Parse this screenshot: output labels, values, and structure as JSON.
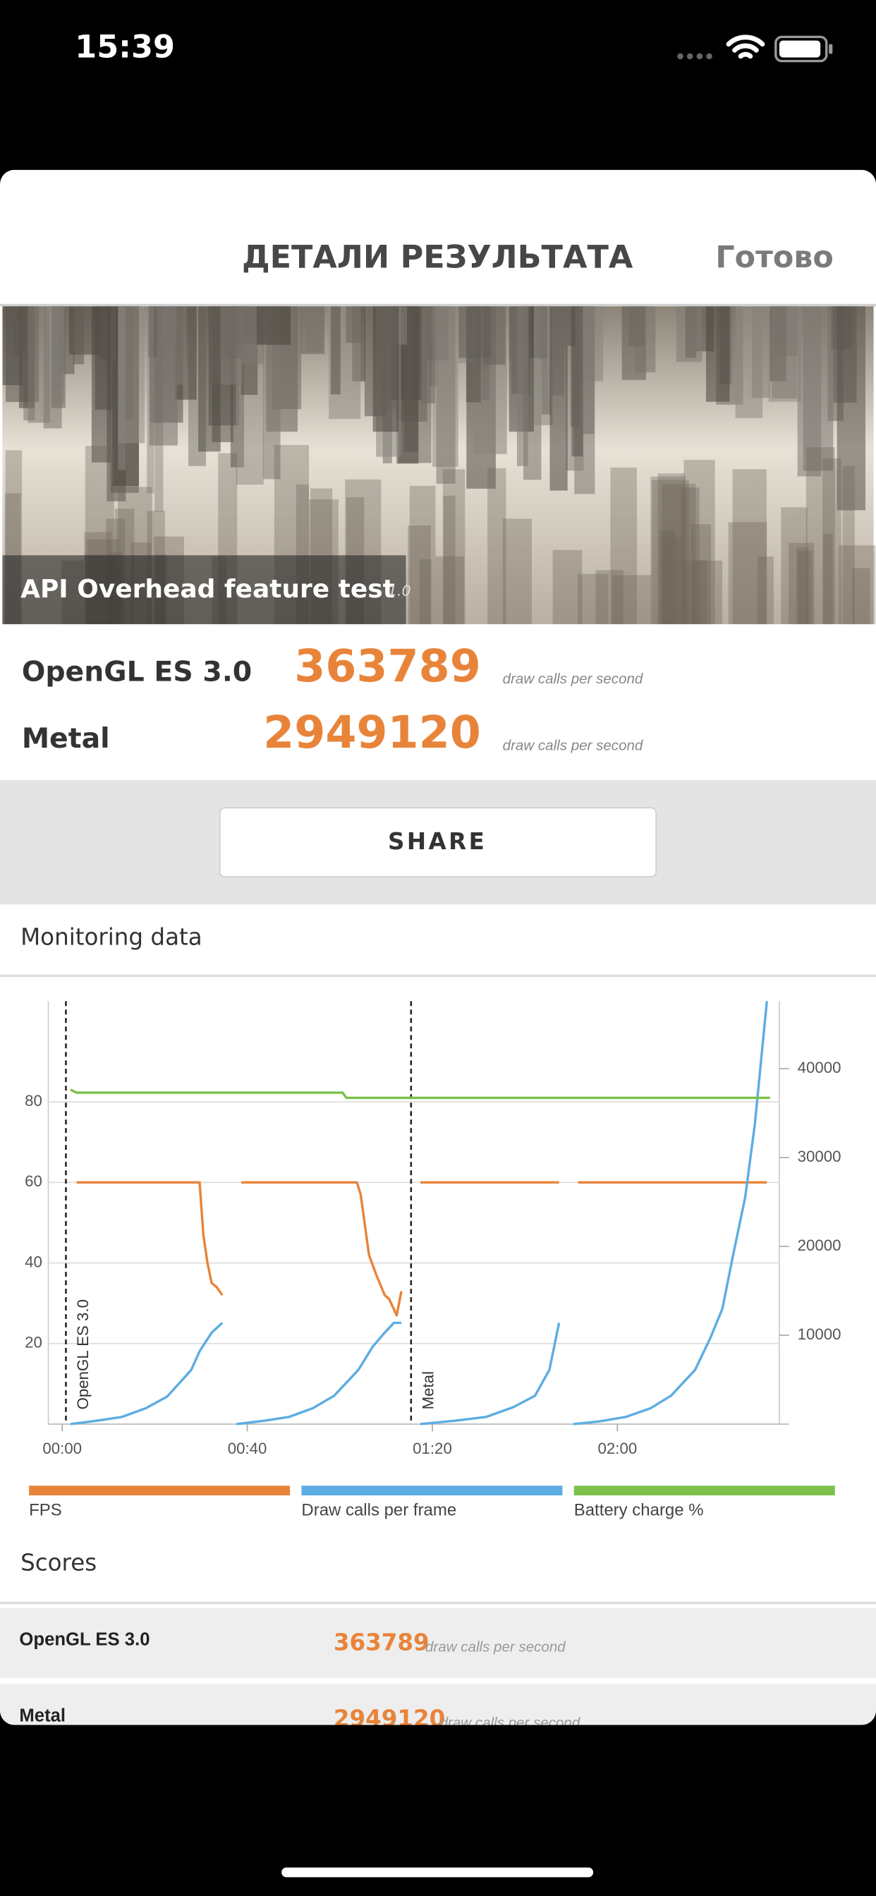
{
  "status_bar": {
    "time": "15:39"
  },
  "header": {
    "title": "ДЕТАЛИ РЕЗУЛЬТАТА",
    "done": "Готово"
  },
  "banner": {
    "title": "API Overhead feature test",
    "version": "1.0"
  },
  "results": [
    {
      "name": "OpenGL ES 3.0",
      "score": 363789,
      "unit": "draw calls per second"
    },
    {
      "name": "Metal",
      "score": 2949120,
      "unit": "draw calls per second"
    }
  ],
  "share_button": "SHARE",
  "monitoring": {
    "title": "Monitoring data"
  },
  "chart_data": {
    "type": "line",
    "xlim": [
      -3,
      155
    ],
    "xticks": [
      {
        "value": 0,
        "label": "00:00"
      },
      {
        "value": 40,
        "label": "00:40"
      },
      {
        "value": 80,
        "label": "01:20"
      },
      {
        "value": 120,
        "label": "02:00"
      }
    ],
    "ylim": [
      0,
      105
    ],
    "yticks": [
      20,
      40,
      60,
      80
    ],
    "y2lim": [
      0,
      47600
    ],
    "y2ticks": [
      10000,
      20000,
      30000,
      40000
    ],
    "grid": true,
    "annotations": [
      {
        "text": "OpenGL ES 3.0",
        "x": 0.8
      },
      {
        "text": "Metal",
        "x": 75.4
      }
    ],
    "series": [
      {
        "name": "FPS",
        "color": "#e8843a",
        "x": [
          3.1,
          29.7,
          30.5,
          31.4,
          32.3,
          33.4,
          34.6,
          36.5,
          38.7,
          63.7,
          64.5,
          66.3,
          67.9,
          69.7,
          70.7,
          72.3,
          73.3,
          75.3,
          77.4,
          107.4,
          109.5,
          111.5,
          152.3
        ],
        "values": [
          60,
          60,
          47,
          40,
          35,
          34,
          32,
          null,
          60,
          60,
          57,
          42,
          37,
          32,
          31,
          27,
          33,
          null,
          60,
          60,
          null,
          60,
          60
        ]
      },
      {
        "name": "Draw calls per frame",
        "color": "#5dade2",
        "axis": "y2",
        "x": [
          1.8,
          7.7,
          12.9,
          18.1,
          22.7,
          27.9,
          29.7,
          32.3,
          34.6,
          36.2,
          37.7,
          43.9,
          49.0,
          54.2,
          58.8,
          64.0,
          67.1,
          69.7,
          71.7,
          73.3,
          75.4,
          77.4,
          85.2,
          91.6,
          97.5,
          102.2,
          105.3,
          107.4,
          109.0,
          110.5,
          116.1,
          121.8,
          127.2,
          131.6,
          136.8,
          140.1,
          142.7,
          145.0,
          147.6,
          149.7,
          152.3
        ],
        "values": [
          0,
          400,
          800,
          1800,
          3100,
          6100,
          8200,
          10300,
          11400,
          null,
          0,
          400,
          800,
          1800,
          3200,
          6100,
          8700,
          10300,
          11400,
          11400,
          null,
          0,
          400,
          800,
          1900,
          3200,
          6100,
          11400,
          null,
          0,
          300,
          800,
          1800,
          3200,
          6100,
          9700,
          13000,
          19000,
          25500,
          33700,
          47600
        ]
      },
      {
        "name": "Battery charge %",
        "color": "#7cc04b",
        "x": [
          1.8,
          3.1,
          60.6,
          61.4,
          153
        ],
        "values": [
          83,
          82.3,
          82.3,
          81,
          81
        ]
      }
    ]
  },
  "scores": {
    "title": "Scores",
    "rows": [
      {
        "name": "OpenGL ES 3.0",
        "score": 363789,
        "unit": "draw calls per second"
      },
      {
        "name": "Metal",
        "score": 2949120,
        "unit": "draw calls per second"
      }
    ]
  }
}
